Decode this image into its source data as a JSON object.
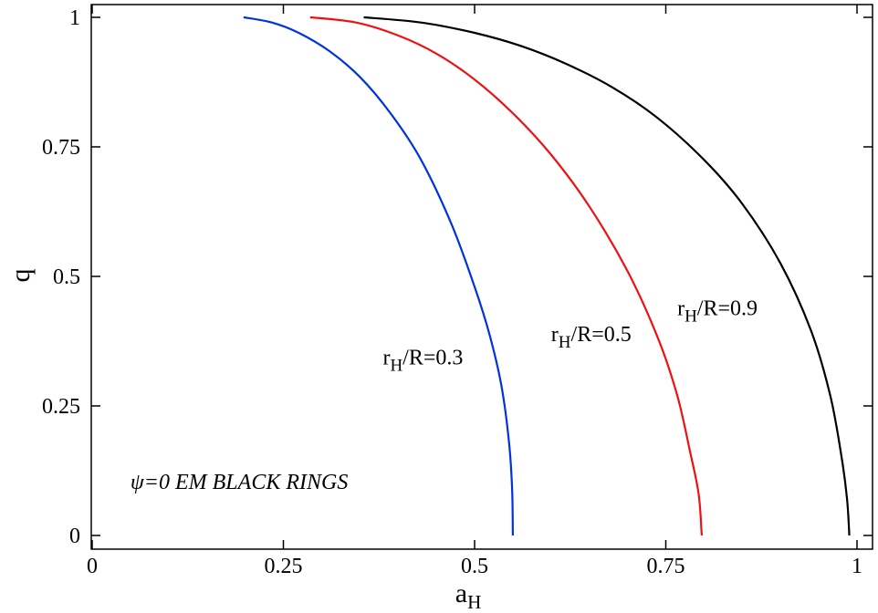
{
  "chart_data": {
    "type": "line",
    "xlabel": "a",
    "xlabel_sub": "H",
    "ylabel": "q",
    "xlim": [
      0,
      1
    ],
    "ylim": [
      0,
      1
    ],
    "xticks": [
      0,
      0.25,
      0.5,
      0.75,
      1
    ],
    "xtick_labels": [
      "0",
      "0.25",
      "0.5",
      "0.75",
      "1"
    ],
    "yticks": [
      0,
      0.25,
      0.5,
      0.75,
      1
    ],
    "ytick_labels": [
      "0",
      "0.25",
      "0.5",
      "0.75",
      "1"
    ],
    "grid": false,
    "annotation": {
      "text": "ψ=0 EM BLACK RINGS",
      "x": 0.05,
      "y": 0.09
    },
    "series": [
      {
        "label_main": "r",
        "label_sub": "H",
        "label_rest": "/R=0.3",
        "color": "#0033dd",
        "label_x": 0.38,
        "label_y": 0.33,
        "points": [
          [
            0.198,
            1.0
          ],
          [
            0.235,
            0.99
          ],
          [
            0.27,
            0.97
          ],
          [
            0.31,
            0.935
          ],
          [
            0.35,
            0.885
          ],
          [
            0.39,
            0.815
          ],
          [
            0.43,
            0.725
          ],
          [
            0.47,
            0.6
          ],
          [
            0.5,
            0.48
          ],
          [
            0.52,
            0.385
          ],
          [
            0.535,
            0.29
          ],
          [
            0.545,
            0.18
          ],
          [
            0.549,
            0.09
          ],
          [
            0.55,
            0.0
          ]
        ]
      },
      {
        "label_main": "r",
        "label_sub": "H",
        "label_rest": "/R=0.5",
        "color": "#ee1111",
        "label_x": 0.6,
        "label_y": 0.375,
        "points": [
          [
            0.285,
            1.0
          ],
          [
            0.345,
            0.99
          ],
          [
            0.4,
            0.965
          ],
          [
            0.45,
            0.93
          ],
          [
            0.5,
            0.88
          ],
          [
            0.55,
            0.815
          ],
          [
            0.6,
            0.735
          ],
          [
            0.65,
            0.635
          ],
          [
            0.7,
            0.51
          ],
          [
            0.74,
            0.38
          ],
          [
            0.765,
            0.27
          ],
          [
            0.782,
            0.16
          ],
          [
            0.793,
            0.08
          ],
          [
            0.797,
            0.0
          ]
        ]
      },
      {
        "label_main": "r",
        "label_sub": "H",
        "label_rest": "/R=0.9",
        "color": "#000000",
        "label_x": 0.765,
        "label_y": 0.425,
        "points": [
          [
            0.355,
            1.0
          ],
          [
            0.43,
            0.99
          ],
          [
            0.5,
            0.97
          ],
          [
            0.56,
            0.945
          ],
          [
            0.62,
            0.91
          ],
          [
            0.68,
            0.865
          ],
          [
            0.74,
            0.805
          ],
          [
            0.8,
            0.725
          ],
          [
            0.85,
            0.64
          ],
          [
            0.9,
            0.525
          ],
          [
            0.94,
            0.395
          ],
          [
            0.965,
            0.27
          ],
          [
            0.98,
            0.15
          ],
          [
            0.987,
            0.07
          ],
          [
            0.99,
            0.0
          ]
        ]
      }
    ]
  }
}
